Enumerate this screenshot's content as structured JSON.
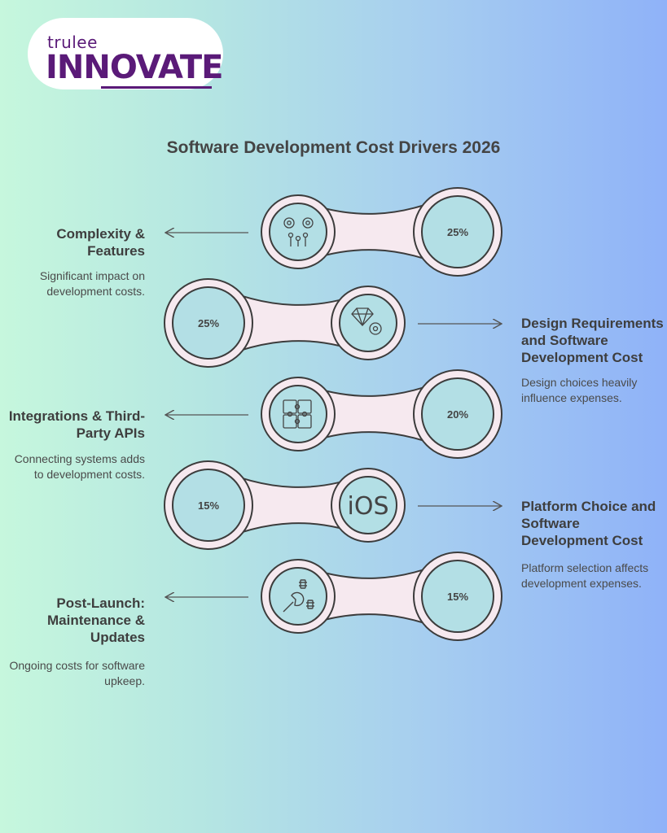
{
  "logo": {
    "small": "trulee",
    "big": "INNOVATE"
  },
  "title": "Software Development Cost Drivers 2026",
  "items": [
    {
      "heading": "Complexity & Features",
      "description": "Significant impact on development costs.",
      "percent": "25%",
      "icon": "gears-icon"
    },
    {
      "heading": "Design Requirements and Software Development Cost",
      "description": "Design choices heavily influence expenses.",
      "percent": "25%",
      "icon": "diamond-gear-icon"
    },
    {
      "heading": "Integrations & Third-Party APIs",
      "description": "Connecting systems adds to development costs.",
      "percent": "20%",
      "icon": "puzzle-icon"
    },
    {
      "heading": "Platform Choice and Software Development Cost",
      "description": "Platform selection affects development expenses.",
      "percent": "15%",
      "icon": "ios-icon",
      "icon_text": "iOS"
    },
    {
      "heading": "Post-Launch: Maintenance & Updates",
      "description": "Ongoing costs for software upkeep.",
      "percent": "15%",
      "icon": "wrench-screws-icon"
    }
  ],
  "colors": {
    "shape_fill": "#f6e9ef",
    "stroke": "#3c3c3c",
    "inner_fill": "#b3dfe5",
    "logo_purple": "#5a1a78"
  }
}
